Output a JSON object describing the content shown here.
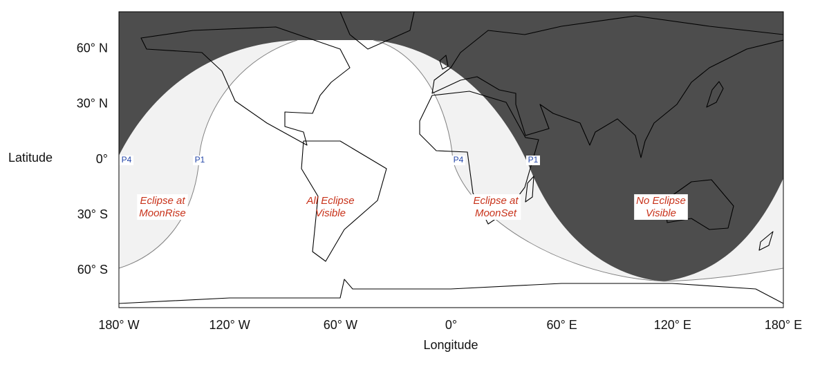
{
  "map": {
    "x_axis": {
      "label": "Longitude",
      "ticks": [
        {
          "value": -180,
          "label": "180° W"
        },
        {
          "value": -120,
          "label": "120° W"
        },
        {
          "value": -60,
          "label": "60° W"
        },
        {
          "value": 0,
          "label": "0°"
        },
        {
          "value": 60,
          "label": "60° E"
        },
        {
          "value": 120,
          "label": "120° E"
        },
        {
          "value": 180,
          "label": "180° E"
        }
      ]
    },
    "y_axis": {
      "label": "Latitude",
      "ticks": [
        {
          "value": 60,
          "label": "60° N"
        },
        {
          "value": 30,
          "label": "30° N"
        },
        {
          "value": 0,
          "label": "0°"
        },
        {
          "value": -30,
          "label": "30° S"
        },
        {
          "value": -60,
          "label": "60° S"
        }
      ]
    },
    "regions": [
      {
        "lines": [
          "Eclipse at",
          "MoonRise"
        ]
      },
      {
        "lines": [
          "All Eclipse",
          "Visible"
        ]
      },
      {
        "lines": [
          "Eclipse at",
          "MoonSet"
        ]
      },
      {
        "lines": [
          "No Eclipse",
          "Visible"
        ]
      }
    ],
    "contacts": [
      "P4",
      "P1",
      "P4",
      "P1"
    ]
  }
}
